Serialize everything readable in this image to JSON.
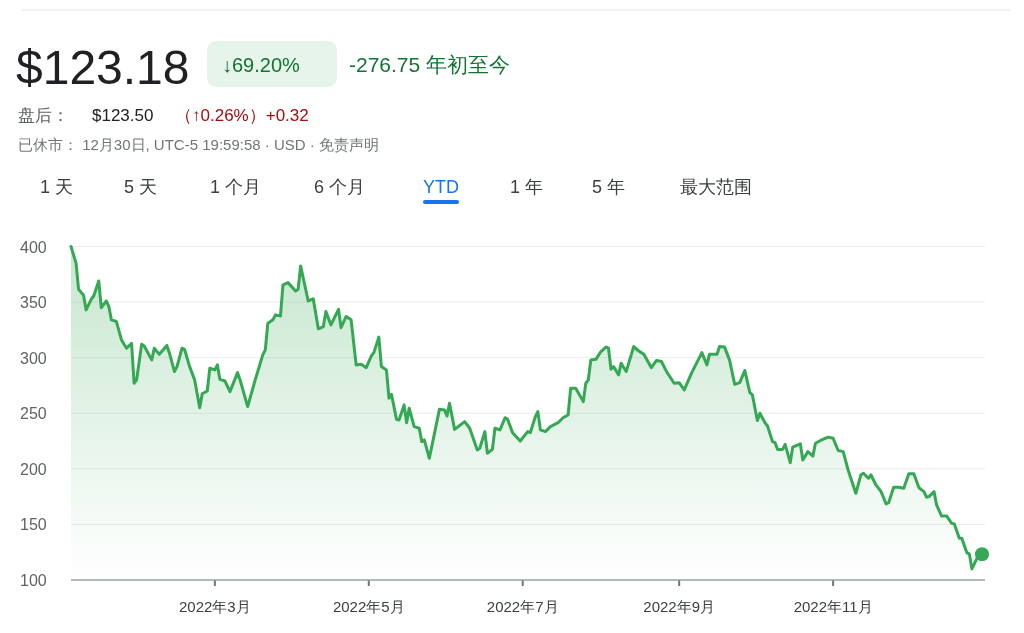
{
  "chart_data": {
    "type": "area",
    "title": "$123.18",
    "annotations": [
      "↓69.20%",
      "-276.75 年初至今",
      "盘后：",
      "$123.50",
      "（↑0.26%）+0.32",
      "已休市：  12月30日, UTC-5 19:59:58 · USD · 免责声明",
      "1 天",
      "5 天",
      "1 个月",
      "6 个月",
      "YTD",
      "1 年",
      "5 年",
      "最大范围"
    ],
    "x": [
      "2022-01-03",
      "2022-01-05",
      "2022-01-06",
      "2022-01-08",
      "2022-01-09",
      "2022-01-11",
      "2022-01-12",
      "2022-01-14",
      "2022-01-15",
      "2022-01-17",
      "2022-01-18",
      "2022-01-19",
      "2022-01-21",
      "2022-01-23",
      "2022-01-25",
      "2022-01-27",
      "2022-01-28",
      "2022-01-29",
      "2022-01-31",
      "2022-02-01",
      "2022-02-04",
      "2022-02-05",
      "2022-02-07",
      "2022-02-10",
      "2022-02-11",
      "2022-02-13",
      "2022-02-14",
      "2022-02-16",
      "2022-02-17",
      "2022-02-19",
      "2022-02-21",
      "2022-02-23",
      "2022-02-24",
      "2022-02-26",
      "2022-02-27",
      "2022-03-01",
      "2022-03-02",
      "2022-03-03",
      "2022-03-05",
      "2022-03-07",
      "2022-03-10",
      "2022-03-11",
      "2022-03-14",
      "2022-03-17",
      "2022-03-20",
      "2022-03-21",
      "2022-03-22",
      "2022-03-24",
      "2022-03-25",
      "2022-03-27",
      "2022-03-28",
      "2022-03-30",
      "2022-04-02",
      "2022-04-03",
      "2022-04-04",
      "2022-04-07",
      "2022-04-09",
      "2022-04-11",
      "2022-04-13",
      "2022-04-14",
      "2022-04-16",
      "2022-04-19",
      "2022-04-20",
      "2022-04-22",
      "2022-04-24",
      "2022-04-26",
      "2022-04-28",
      "2022-04-30",
      "2022-05-02",
      "2022-05-03",
      "2022-05-05",
      "2022-05-06",
      "2022-05-08",
      "2022-05-09",
      "2022-05-10",
      "2022-05-12",
      "2022-05-13",
      "2022-05-15",
      "2022-05-16",
      "2022-05-17",
      "2022-05-19",
      "2022-05-21",
      "2022-05-22",
      "2022-05-23",
      "2022-05-25",
      "2022-05-29",
      "2022-05-31",
      "2022-06-01",
      "2022-06-02",
      "2022-06-04",
      "2022-06-08",
      "2022-06-10",
      "2022-06-13",
      "2022-06-14",
      "2022-06-16",
      "2022-06-17",
      "2022-06-19",
      "2022-06-20",
      "2022-06-22",
      "2022-06-24",
      "2022-06-25",
      "2022-06-27",
      "2022-06-30",
      "2022-07-03",
      "2022-07-04",
      "2022-07-06",
      "2022-07-07",
      "2022-07-08",
      "2022-07-10",
      "2022-07-12",
      "2022-07-15",
      "2022-07-17",
      "2022-07-19",
      "2022-07-20",
      "2022-07-22",
      "2022-07-25",
      "2022-07-26",
      "2022-07-27",
      "2022-07-28",
      "2022-07-30",
      "2022-08-01",
      "2022-08-03",
      "2022-08-04",
      "2022-08-05",
      "2022-08-06",
      "2022-08-08",
      "2022-08-09",
      "2022-08-11",
      "2022-08-14",
      "2022-08-16",
      "2022-08-18",
      "2022-08-21",
      "2022-08-23",
      "2022-08-25",
      "2022-08-27",
      "2022-08-28",
      "2022-08-30",
      "2022-09-01",
      "2022-09-03",
      "2022-09-06",
      "2022-09-10",
      "2022-09-12",
      "2022-09-13",
      "2022-09-16",
      "2022-09-17",
      "2022-09-19",
      "2022-09-21",
      "2022-09-23",
      "2022-09-25",
      "2022-09-27",
      "2022-09-29",
      "2022-09-30",
      "2022-10-02",
      "2022-10-03",
      "2022-10-05",
      "2022-10-06",
      "2022-10-08",
      "2022-10-09",
      "2022-10-10",
      "2022-10-12",
      "2022-10-13",
      "2022-10-15",
      "2022-10-16",
      "2022-10-19",
      "2022-10-20",
      "2022-10-22",
      "2022-10-24",
      "2022-10-25",
      "2022-10-27",
      "2022-10-30",
      "2022-11-01",
      "2022-11-03",
      "2022-11-05",
      "2022-11-07",
      "2022-11-10",
      "2022-11-12",
      "2022-11-13",
      "2022-11-15",
      "2022-11-16",
      "2022-11-18",
      "2022-11-20",
      "2022-11-22",
      "2022-11-23",
      "2022-11-25",
      "2022-11-27",
      "2022-11-29",
      "2022-12-01",
      "2022-12-03",
      "2022-12-05",
      "2022-12-07",
      "2022-12-08",
      "2022-12-09",
      "2022-12-11",
      "2022-12-12",
      "2022-12-14",
      "2022-12-16",
      "2022-12-18",
      "2022-12-19",
      "2022-12-21",
      "2022-12-22",
      "2022-12-24",
      "2022-12-25",
      "2022-12-26",
      "2022-12-28",
      "2022-12-30"
    ],
    "series": [
      {
        "color": "#34a853",
        "values": [
          400,
          385,
          361.5,
          356,
          343,
          352.5,
          355.5,
          369,
          345,
          351,
          346,
          334,
          332.5,
          316,
          308.5,
          313,
          277,
          280,
          312,
          310.5,
          298,
          308.5,
          303,
          311,
          304,
          287.5,
          292,
          308.5,
          307.5,
          292,
          280,
          255,
          267.5,
          270,
          290.5,
          289,
          293.5,
          280.5,
          279,
          269.5,
          286.5,
          280,
          256,
          280,
          302.5,
          307,
          331,
          334,
          338.5,
          337.5,
          365.5,
          367.5,
          360,
          361.5,
          382.5,
          351,
          353,
          326,
          328,
          341.5,
          329.5,
          343.5,
          327,
          337,
          334,
          293.5,
          294,
          291,
          301.5,
          304.5,
          318.5,
          292,
          289,
          263.5,
          267,
          244.5,
          244,
          257.5,
          241.5,
          254.5,
          238,
          236.5,
          224.5,
          226,
          209.5,
          253.5,
          253,
          247.5,
          259,
          235.5,
          242.5,
          236.5,
          217,
          218.5,
          233.5,
          214,
          217.5,
          236.5,
          235,
          246,
          244.5,
          232.5,
          225,
          233.5,
          232.5,
          247,
          251.5,
          235,
          233.5,
          238,
          241.5,
          246,
          248.5,
          272.5,
          272.5,
          260.5,
          277,
          280,
          298,
          298.5,
          305.5,
          309.5,
          308.5,
          289.5,
          292,
          284.5,
          295,
          287.5,
          310,
          306,
          303,
          291,
          297.5,
          296.5,
          287.5,
          284,
          277,
          277.5,
          271,
          286.5,
          304.5,
          293.5,
          303,
          303,
          310,
          309.5,
          297.5,
          276,
          277.5,
          288.5,
          268.5,
          266.5,
          243.5,
          250,
          241.5,
          238.5,
          224.5,
          223.5,
          217.5,
          217.5,
          222,
          205.5,
          219.5,
          222.5,
          208,
          215.5,
          211.5,
          223,
          225.5,
          228.5,
          227.5,
          216.5,
          215.5,
          198.5,
          178,
          194.5,
          196,
          191.5,
          194.5,
          185.5,
          179.5,
          168.5,
          169.5,
          183.5,
          183.5,
          182.5,
          195.5,
          195.5,
          183,
          179.5,
          174.5,
          175,
          179.5,
          167.5,
          157.5,
          157.5,
          151,
          150.5,
          137.5,
          137.5,
          124.5,
          123.5,
          110,
          119.5,
          123.18
        ]
      }
    ],
    "xlim": [
      "2022-01-03",
      "2022-12-30"
    ],
    "xticks": [
      {
        "value": "2022-03-01",
        "label": "2022年3月"
      },
      {
        "value": "2022-05-01",
        "label": "2022年5月"
      },
      {
        "value": "2022-07-01",
        "label": "2022年7月"
      },
      {
        "value": "2022-09-01",
        "label": "2022年9月"
      },
      {
        "value": "2022-11-01",
        "label": "2022年11月"
      }
    ],
    "ylim": [
      100,
      400
    ],
    "yticks": [
      100,
      150,
      200,
      250,
      300,
      350,
      400
    ],
    "grid": "y"
  }
}
